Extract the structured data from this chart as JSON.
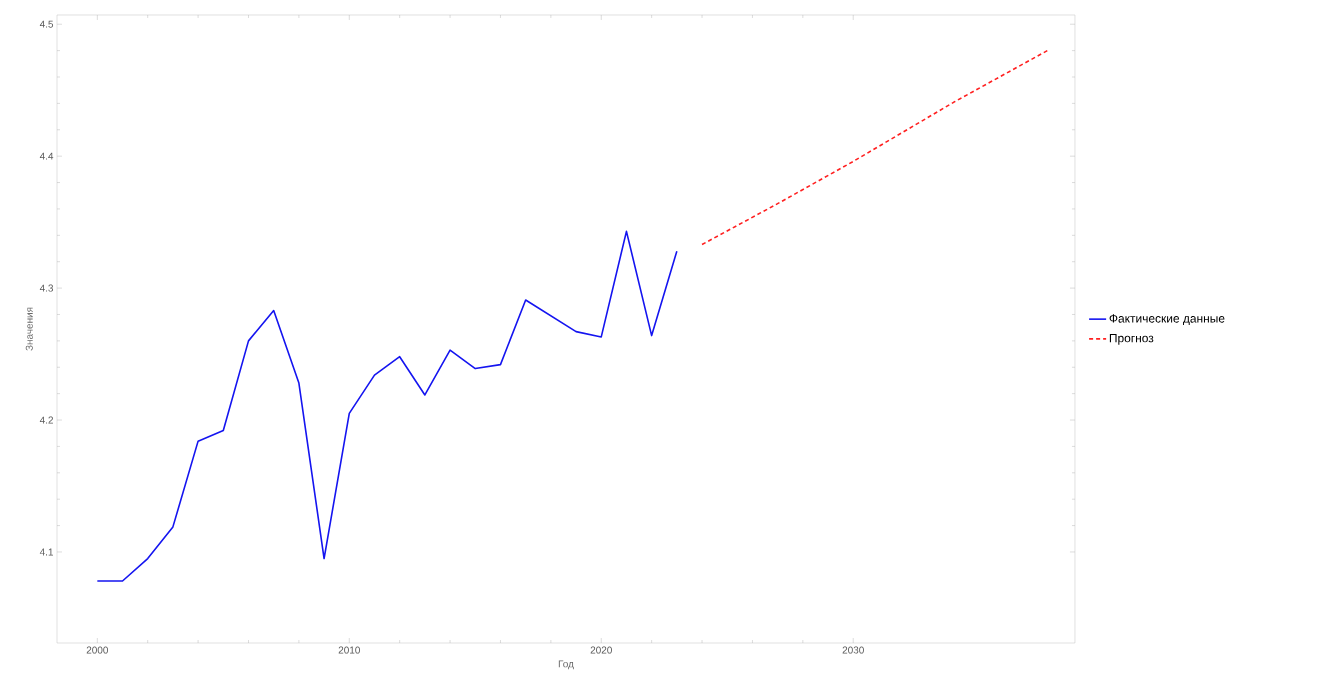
{
  "chart_data": {
    "type": "line",
    "xlabel": "Год",
    "ylabel": "Значения",
    "xlim": [
      1998.4,
      2038.8
    ],
    "ylim": [
      4.031,
      4.507
    ],
    "xticks": [
      2000,
      2010,
      2020,
      2030
    ],
    "yticks": [
      4.1,
      4.2,
      4.3,
      4.4,
      4.5
    ],
    "grid": false,
    "legend": "right",
    "marker": "none",
    "series": [
      {
        "name": "Фактические данные",
        "color": "#1414f0",
        "line_style": "solid",
        "x": [
          2000,
          2001,
          2002,
          2003,
          2004,
          2005,
          2006,
          2007,
          2008,
          2009,
          2010,
          2011,
          2012,
          2013,
          2014,
          2015,
          2016,
          2017,
          2018,
          2019,
          2020,
          2021,
          2022,
          2023
        ],
        "values": [
          4.078,
          4.078,
          4.095,
          4.119,
          4.184,
          4.192,
          4.26,
          4.283,
          4.228,
          4.095,
          4.205,
          4.234,
          4.248,
          4.219,
          4.253,
          4.239,
          4.242,
          4.291,
          4.279,
          4.267,
          4.263,
          4.343,
          4.264,
          4.328
        ]
      },
      {
        "name": "Прогноз",
        "color": "#ff2020",
        "line_style": "dashed",
        "x": [
          2024,
          2027,
          2030,
          2034,
          2037.8
        ],
        "values": [
          4.333,
          4.364,
          4.396,
          4.441,
          4.481
        ]
      }
    ]
  }
}
